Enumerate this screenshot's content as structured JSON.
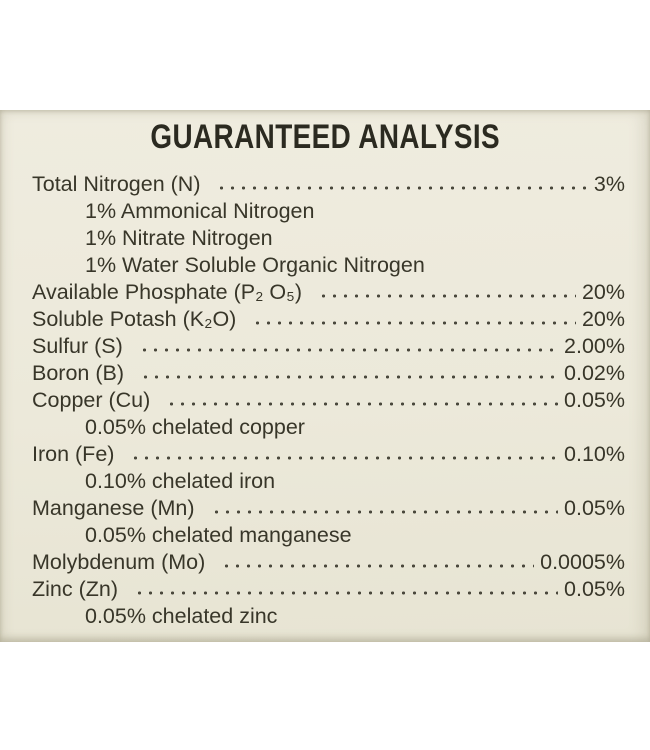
{
  "page": {
    "colors": {
      "background": "#ffffff",
      "label_bg": "#ece9da",
      "text_color": "#383629",
      "title_color": "#2b2a20",
      "dot_color": "#4a483c"
    }
  },
  "analysis": {
    "title": "GUARANTEED ANALYSIS",
    "rows": [
      {
        "label": "Total Nitrogen (N)",
        "value": "3%",
        "indent": false
      },
      {
        "label": "1% Ammonical Nitrogen",
        "value": "",
        "indent": true
      },
      {
        "label": "1% Nitrate Nitrogen",
        "value": "",
        "indent": true
      },
      {
        "label": "1% Water Soluble Organic Nitrogen",
        "value": "",
        "indent": true
      },
      {
        "label": "Available Phosphate (P₂ O₅)",
        "value": "20%",
        "indent": false
      },
      {
        "label": "Soluble Potash (K₂O)",
        "value": "20%",
        "indent": false
      },
      {
        "label": "Sulfur (S)",
        "value": "2.00%",
        "indent": false
      },
      {
        "label": "Boron (B)",
        "value": "0.02%",
        "indent": false
      },
      {
        "label": "Copper (Cu)",
        "value": "0.05%",
        "indent": false
      },
      {
        "label": "0.05% chelated copper",
        "value": "",
        "indent": true
      },
      {
        "label": "Iron (Fe)",
        "value": "0.10%",
        "indent": false
      },
      {
        "label": "0.10% chelated iron",
        "value": "",
        "indent": true
      },
      {
        "label": "Manganese (Mn)",
        "value": "0.05%",
        "indent": false
      },
      {
        "label": "0.05% chelated manganese",
        "value": "",
        "indent": true
      },
      {
        "label": "Molybdenum (Mo)",
        "value": "0.0005%",
        "indent": false
      },
      {
        "label": "Zinc (Zn)",
        "value": "0.05%",
        "indent": false
      },
      {
        "label": "0.05% chelated zinc",
        "value": "",
        "indent": true
      }
    ]
  }
}
